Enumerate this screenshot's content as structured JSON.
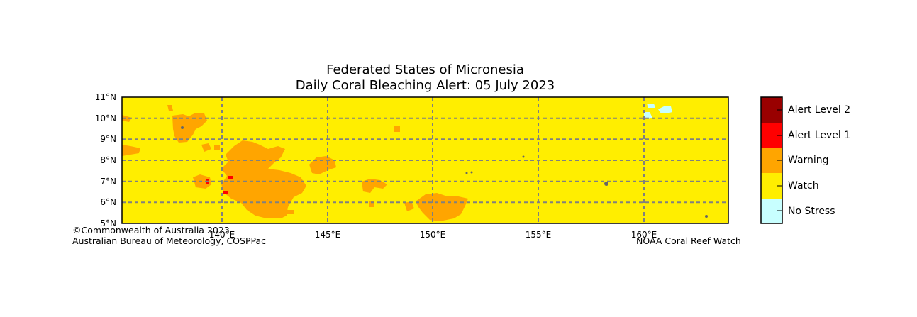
{
  "title_line1": "Federated States of Micronesia",
  "title_line2": "Daily Coral Bleaching Alert: 05 July 2023",
  "lat_labels": [
    "11°N",
    "10°N",
    "9°N",
    "8°N",
    "7°N",
    "6°N",
    "5°N"
  ],
  "lon_labels": [
    "140°E",
    "145°E",
    "150°E",
    "155°E",
    "160°E"
  ],
  "extent": {
    "lon_min": 135.25,
    "lon_max": 164,
    "lat_min": 5,
    "lat_max": 11
  },
  "legend": [
    {
      "label": "Alert Level 2",
      "color": "#990000"
    },
    {
      "label": "Alert Level 1",
      "color": "#ff0000"
    },
    {
      "label": "Warning",
      "color": "#ffa500"
    },
    {
      "label": "Watch",
      "color": "#ffee00"
    },
    {
      "label": "No Stress",
      "color": "#c8ffff"
    }
  ],
  "credits": {
    "line1": "©Commonwealth of Australia 2023",
    "line2": "Australian Bureau of Meteorology, COSPPac",
    "noaa": "NOAA Coral Reef Watch"
  },
  "colors": {
    "background_watch": "#ffee00",
    "warning": "#ffa500",
    "alert1": "#ff0000",
    "no_stress": "#c8ffff",
    "grid": "#808080",
    "land": "#666666"
  }
}
